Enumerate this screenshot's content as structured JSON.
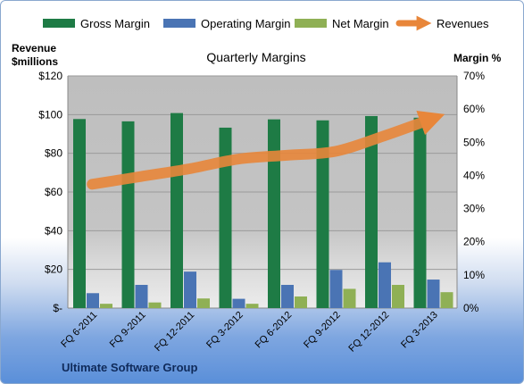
{
  "chart_data": {
    "type": "bar",
    "title": "Quarterly Margins",
    "footer": "Ultimate Software Group",
    "ylabel_left": [
      "Revenue",
      "$millions"
    ],
    "ylabel_right": "Margin %",
    "categories": [
      "FQ 6-2011",
      "FQ 9-2011",
      "FQ 12-2011",
      "FQ 3-2012",
      "FQ 6-2012",
      "FQ 9-2012",
      "FQ 12-2012",
      "FQ 3-2013"
    ],
    "left_axis": {
      "range": [
        0,
        120
      ],
      "ticks": [
        "$-",
        "$20",
        "$40",
        "$60",
        "$80",
        "$100",
        "$120"
      ]
    },
    "right_axis": {
      "range": [
        0,
        70
      ],
      "ticks": [
        "0%",
        "10%",
        "20%",
        "30%",
        "40%",
        "50%",
        "60%",
        "70%"
      ]
    },
    "series": [
      {
        "name": "Gross Margin",
        "axis": "right",
        "color": "#1e7b45",
        "values": [
          57,
          56.3,
          58.8,
          54.4,
          56.9,
          56.6,
          57.9,
          57.4
        ]
      },
      {
        "name": "Operating Margin",
        "axis": "right",
        "color": "#4a74b4",
        "values": [
          4.5,
          7,
          11,
          2.8,
          7,
          11.5,
          13.8,
          8.6
        ]
      },
      {
        "name": "Net Margin",
        "axis": "right",
        "color": "#8fb055",
        "values": [
          1.3,
          1.7,
          2.9,
          1.3,
          3.5,
          5.8,
          7,
          4.8
        ]
      },
      {
        "name": "Revenues",
        "axis": "left",
        "type": "line",
        "color": "#e8863a",
        "values": [
          64,
          68,
          72,
          77,
          79,
          81,
          89,
          98
        ]
      }
    ],
    "legend_position": "top",
    "grid": true
  }
}
